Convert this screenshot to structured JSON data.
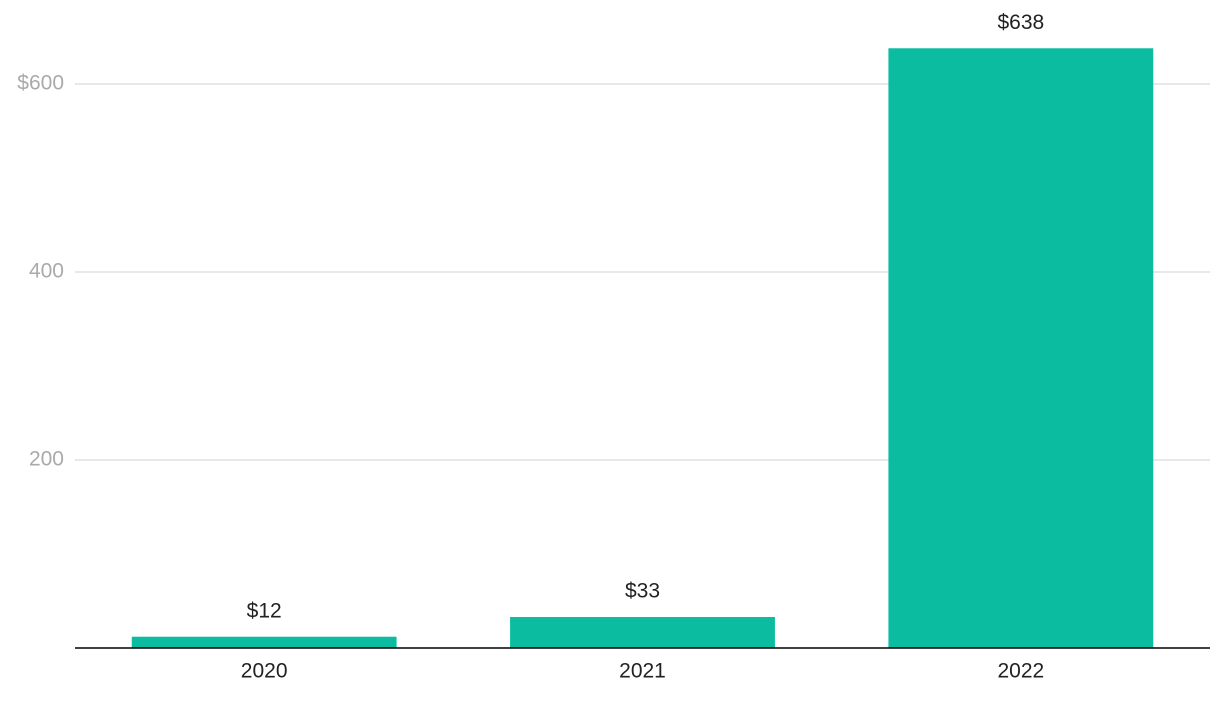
{
  "chart_data": {
    "type": "bar",
    "categories": [
      "2020",
      "2021",
      "2022"
    ],
    "values": [
      12,
      33,
      638
    ],
    "value_labels": [
      "$12",
      "$33",
      "$638"
    ],
    "color": "#0bbca0",
    "ylim": [
      0,
      680
    ],
    "yticks": [
      200,
      400,
      {
        "value": 600,
        "label": "$600"
      }
    ],
    "grid": true
  }
}
